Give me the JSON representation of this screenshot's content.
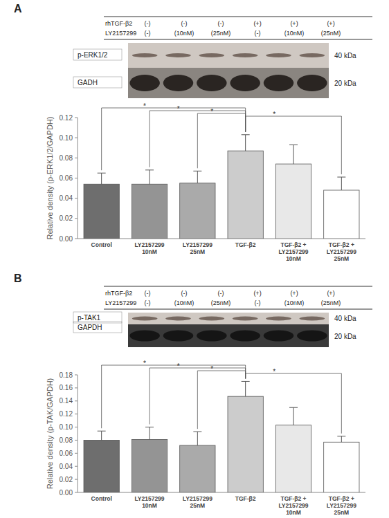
{
  "chart_data": [
    {
      "type": "bar",
      "panel_label": "A",
      "header": {
        "rows": [
          {
            "label": "rhTGF-β2",
            "cells": [
              "(-)",
              "(-)",
              "(-)",
              "(+)",
              "(+)",
              "(+)"
            ]
          },
          {
            "label": "LY2157299",
            "cells": [
              "(-)",
              "(10nM)",
              "(25nM)",
              "(-)",
              "(10nM)",
              "(25nM)"
            ]
          }
        ]
      },
      "blots": [
        {
          "label": "p-ERK1/2",
          "kda": "40 kDa"
        },
        {
          "label": "GADH",
          "kda": "20 kDa"
        }
      ],
      "y_label": "Relative density (p-ERK1/2/GAPDH)",
      "categories": [
        "Control",
        "LY2157299\n10nM",
        "LY2157299\n25nM",
        "TGF-β2",
        "TGF-β2 +\nLY2157299\n10nM",
        "TGF-β2 +\nLY2157299\n25nM"
      ],
      "values": [
        0.054,
        0.054,
        0.055,
        0.087,
        0.074,
        0.048
      ],
      "errors": [
        0.011,
        0.014,
        0.012,
        0.016,
        0.019,
        0.013
      ],
      "colors": [
        "#6e6e6e",
        "#949494",
        "#aaaaaa",
        "#cccccc",
        "#e8e8e8",
        "#ffffff"
      ],
      "ylim": [
        0,
        0.12
      ],
      "yticks": [
        {
          "value": 0,
          "label": "0.00"
        },
        {
          "value": 0.02,
          "label": "0.02"
        },
        {
          "value": 0.04,
          "label": "0.04"
        },
        {
          "value": 0.06,
          "label": "0.06"
        },
        {
          "value": 0.08,
          "label": "0.08"
        },
        {
          "value": 0.1,
          "label": "0.10"
        },
        {
          "value": 0.12,
          "label": "0.12"
        }
      ],
      "annotations": [
        {
          "text": "*",
          "between": [
            "Control",
            "TGF-β2"
          ]
        },
        {
          "text": "*",
          "between": [
            "LY2157299\n10nM",
            "TGF-β2"
          ]
        },
        {
          "text": "*",
          "between": [
            "LY2157299\n25nM",
            "TGF-β2"
          ]
        },
        {
          "text": "*",
          "between": [
            "TGF-β2",
            "TGF-β2 +\nLY2157299\n25nM"
          ]
        }
      ]
    },
    {
      "type": "bar",
      "panel_label": "B",
      "header": {
        "rows": [
          {
            "label": "rhTGF-β2",
            "cells": [
              "(-)",
              "(-)",
              "(-)",
              "(+)",
              "(+)",
              "(+)"
            ]
          },
          {
            "label": "LY2157299",
            "cells": [
              "(-)",
              "(10nM)",
              "(25nM)",
              "(-)",
              "(10nM)",
              "(25nM)"
            ]
          }
        ]
      },
      "blots": [
        {
          "label": "p-TAK1",
          "kda": "40 kDa"
        },
        {
          "label": "GAPDH",
          "kda": "20 kDa"
        }
      ],
      "y_label": "Relative density (p-TAK/GAPDH)",
      "categories": [
        "Control",
        "LY2157299\n10nM",
        "LY2157299\n25nM",
        "TGF-β2",
        "TGF-β2 +\nLY2157299\n10nM",
        "TGF-β2 +\nLY2157299\n25nM"
      ],
      "values": [
        0.08,
        0.081,
        0.072,
        0.147,
        0.103,
        0.077
      ],
      "errors": [
        0.014,
        0.019,
        0.021,
        0.023,
        0.027,
        0.009
      ],
      "colors": [
        "#6e6e6e",
        "#949494",
        "#aaaaaa",
        "#cccccc",
        "#e8e8e8",
        "#ffffff"
      ],
      "ylim": [
        0,
        0.18
      ],
      "yticks": [
        {
          "value": 0,
          "label": "0.00"
        },
        {
          "value": 0.02,
          "label": "0.02"
        },
        {
          "value": 0.04,
          "label": "0.04"
        },
        {
          "value": 0.06,
          "label": "0.06"
        },
        {
          "value": 0.08,
          "label": "0.08"
        },
        {
          "value": 0.1,
          "label": "0.10"
        },
        {
          "value": 0.12,
          "label": "0.12"
        },
        {
          "value": 0.14,
          "label": "0.14"
        },
        {
          "value": 0.16,
          "label": "0.16"
        },
        {
          "value": 0.18,
          "label": "0.18"
        }
      ],
      "annotations": [
        {
          "text": "*",
          "between": [
            "Control",
            "TGF-β2"
          ]
        },
        {
          "text": "*",
          "between": [
            "LY2157299\n10nM",
            "TGF-β2"
          ]
        },
        {
          "text": "*",
          "between": [
            "LY2157299\n25nM",
            "TGF-β2"
          ]
        },
        {
          "text": "*",
          "between": [
            "TGF-β2",
            "TGF-β2 +\nLY2157299\n25nM"
          ]
        }
      ]
    }
  ]
}
